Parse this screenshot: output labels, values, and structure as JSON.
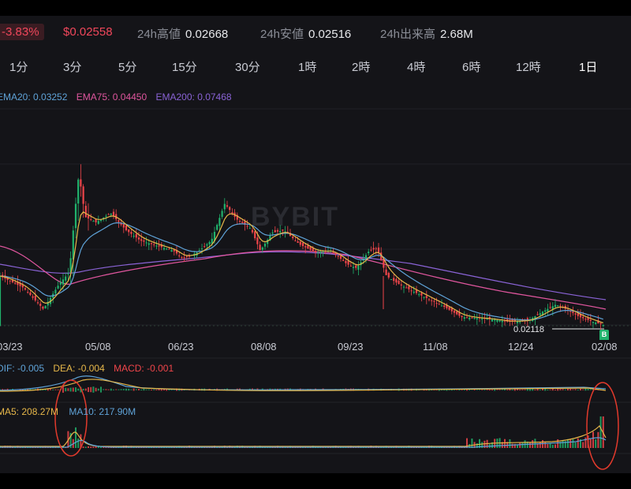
{
  "header": {
    "change": "-3.83%",
    "price": "$0.02558",
    "stats": [
      {
        "key": "24h高値",
        "value": "0.02668"
      },
      {
        "key": "24h安値",
        "value": "0.02516"
      },
      {
        "key": "24h出来高",
        "value": "2.68M"
      }
    ]
  },
  "timeframes": [
    "1分",
    "3分",
    "5分",
    "15分",
    "30分",
    "1時",
    "2時",
    "4時",
    "6時",
    "12時",
    "1日"
  ],
  "active_timeframe": "1日",
  "ema": {
    "ema20": "EMA20: 0.03252",
    "ema75": "EMA75: 0.04450",
    "ema200": "EMA200: 0.07468",
    "colors": {
      "ema20": "#5fa3d8",
      "ema75": "#e0569e",
      "ema200": "#8a63d6"
    }
  },
  "watermark": "BYBIT",
  "x_labels": [
    "03/23",
    "05/08",
    "06/23",
    "08/08",
    "09/23",
    "11/08",
    "12/24",
    "02/08"
  ],
  "low_marker": {
    "value": "0.02118",
    "badge": "B"
  },
  "macd": {
    "dif": "DIF: -0.005",
    "dea": "DEA: -0.004",
    "macd": "MACD: -0.001"
  },
  "volume": {
    "ma5": "MA5: 208.27M",
    "ma10": "MA10: 217.90M"
  },
  "colors": {
    "up": "#20b26c",
    "down": "#ef454a",
    "background": "#141418",
    "highlight_circle": "#e23a2c"
  },
  "chart_data": {
    "type": "candlestick",
    "x_axis": [
      "03/23",
      "05/08",
      "06/23",
      "08/08",
      "09/23",
      "11/08",
      "12/24",
      "02/08"
    ],
    "series": [
      {
        "name": "EMA20",
        "current": 0.03252
      },
      {
        "name": "EMA75",
        "current": 0.0445
      },
      {
        "name": "EMA200",
        "current": 0.07468
      }
    ],
    "marked_low": 0.02118,
    "indicators": [
      "MACD",
      "Volume"
    ]
  }
}
